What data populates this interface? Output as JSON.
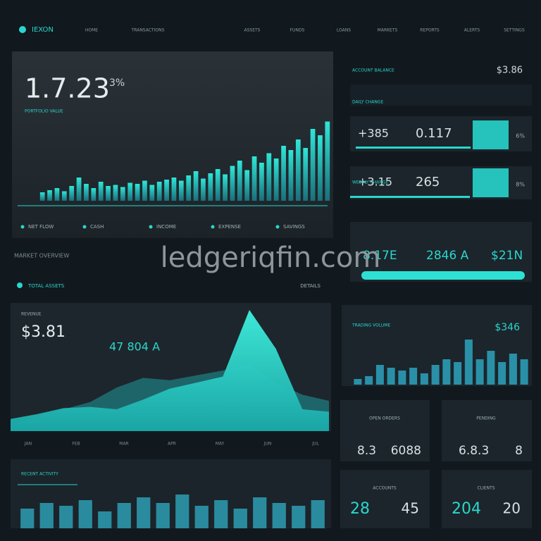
{
  "header": {
    "brand": "IEXON",
    "nav": [
      "HOME",
      "TRANSACTIONS",
      "ASSETS",
      "FUNDS",
      "LOANS",
      "MARKETS",
      "REPORTS",
      "ALERTS",
      "SETTINGS"
    ]
  },
  "hero": {
    "value": "1.7.23",
    "change": "3%",
    "subtitle": "PORTFOLIO VALUE",
    "legend": [
      "NET FLOW",
      "CASH",
      "INCOME",
      "EXPENSE",
      "SAVINGS"
    ],
    "bars": [
      8,
      10,
      12,
      9,
      14,
      22,
      16,
      12,
      18,
      14,
      15,
      13,
      17,
      16,
      19,
      15,
      18,
      20,
      22,
      19,
      24,
      28,
      21,
      26,
      30,
      25,
      33,
      38,
      29,
      42,
      36,
      45,
      40,
      52,
      48,
      58,
      50,
      68,
      62,
      75
    ]
  },
  "balance": {
    "label": "ACCOUNT BALANCE",
    "value": "$3.86"
  },
  "cards": [
    {
      "label": "DAILY CHANGE",
      "left": "+385",
      "right": "0.117",
      "tag": "6%"
    },
    {
      "label": "WEEKLY CHANGE",
      "left": "+3.15",
      "right": "265",
      "tag": "8%"
    }
  ],
  "summary": {
    "items": [
      "8.17E",
      "2846 A",
      "$21N"
    ]
  },
  "watermark": "ledgeriqfin.com",
  "section": "MARKET OVERVIEW",
  "overview": {
    "label": "TOTAL ASSETS",
    "action": "DETAILS"
  },
  "area": {
    "label": "REVENUE",
    "value": "$3.81",
    "secondary": "47 804 A",
    "values": [
      10,
      14,
      19,
      20,
      18,
      26,
      35,
      40,
      45,
      100,
      68,
      18,
      16
    ],
    "back": [
      5,
      12,
      18,
      24,
      36,
      44,
      42,
      46,
      50,
      55,
      40,
      30,
      25
    ],
    "x_labels": [
      "JAN",
      "FEB",
      "MAR",
      "APR",
      "MAY",
      "JUN",
      "JUL"
    ]
  },
  "volume": {
    "label": "TRADING VOLUME",
    "value": "$346",
    "bars": [
      10,
      15,
      35,
      30,
      25,
      30,
      20,
      35,
      45,
      40,
      80,
      45,
      60,
      40,
      55,
      45
    ]
  },
  "tiles": [
    {
      "label": "OPEN ORDERS",
      "left": "8.3",
      "right": "6088"
    },
    {
      "label": "PENDING",
      "left": "6.8.3",
      "right": "8"
    },
    {
      "label": "ACCOUNTS",
      "left": "28",
      "right": "45"
    },
    {
      "label": "CLIENTS",
      "left": "204",
      "right": "20"
    }
  ],
  "activity": {
    "label": "RECENT ACTIVITY",
    "bars": [
      35,
      45,
      40,
      50,
      30,
      45,
      55,
      45,
      60,
      40,
      50,
      35,
      55,
      45,
      40,
      50
    ]
  }
}
